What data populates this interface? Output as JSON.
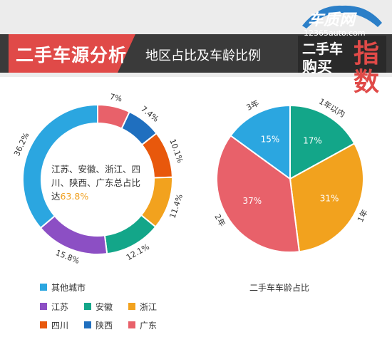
{
  "header": {
    "title": "二手车源分析",
    "subtitle": "地区占比及车龄比例",
    "logo_brand": "车质网",
    "logo_url": "12365auto.com",
    "logo_line1": "二手车",
    "logo_line2": "购买",
    "logo_big": "指数",
    "colors": {
      "strip": "#3a3a3a",
      "accent": "#e04a48",
      "bar_bg": "#ececec"
    }
  },
  "donut_center": {
    "text": "江苏、安徽、浙江、四川、陕西、广东总占比达",
    "value": "63.8%"
  },
  "legend": {
    "other": "其他城市",
    "jiangsu": "江苏",
    "anhui": "安徽",
    "zhejiang": "浙江",
    "sichuan": "四川",
    "shaanxi": "陕西",
    "guangdong": "广东"
  },
  "pie_title": "二手车车龄占比",
  "chart_data": [
    {
      "type": "pie",
      "variant": "donut",
      "categories": [
        "广东",
        "陕西",
        "四川",
        "浙江",
        "安徽",
        "江苏",
        "其他城市"
      ],
      "values": [
        7,
        7.4,
        10.1,
        11.4,
        12.1,
        15.8,
        36.2
      ],
      "labels": [
        "7%",
        "7.4%",
        "10.1%",
        "11.4%",
        "12.1%",
        "15.8%",
        "36.2%"
      ],
      "colors": [
        "#e8616a",
        "#1f6fbf",
        "#e8580c",
        "#f2a21e",
        "#13a689",
        "#8c4fc4",
        "#2ba6e0"
      ],
      "legend": "bottom-left"
    },
    {
      "type": "pie",
      "categories": [
        "1年以内",
        "1年",
        "2年",
        "3年"
      ],
      "values": [
        17,
        31,
        37,
        15
      ],
      "labels": [
        "17%",
        "31%",
        "37%",
        "15%"
      ],
      "colors": [
        "#13a689",
        "#f2a21e",
        "#e8616a",
        "#2ba6e0"
      ],
      "title": "二手车车龄占比"
    }
  ]
}
